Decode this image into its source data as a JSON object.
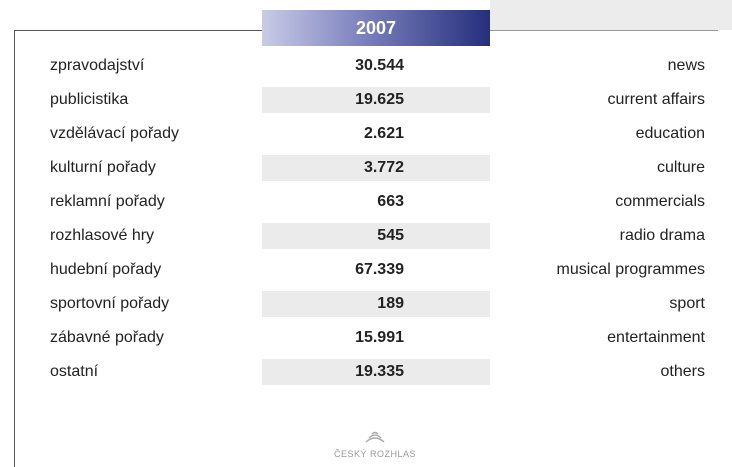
{
  "header": {
    "year": "2007"
  },
  "table": {
    "rows": [
      [
        "zpravodajství",
        "30.544",
        "news"
      ],
      [
        "publicistika",
        "19.625",
        "current affairs"
      ],
      [
        "vzdělávací pořady",
        "2.621",
        "education"
      ],
      [
        "kulturní pořady",
        "3.772",
        "culture"
      ],
      [
        "reklamní pořady",
        "663",
        "commercials"
      ],
      [
        "rozhlasové hry",
        "545",
        "radio drama"
      ],
      [
        "hudební pořady",
        "67.339",
        "musical programmes"
      ],
      [
        "sportovní pořady",
        "189",
        "sport"
      ],
      [
        "zábavné pořady",
        "15.991",
        "entertainment"
      ],
      [
        "ostatní",
        "19.335",
        "others"
      ]
    ]
  },
  "footer": {
    "logo": "ČESKÝ ROZHLAS"
  }
}
